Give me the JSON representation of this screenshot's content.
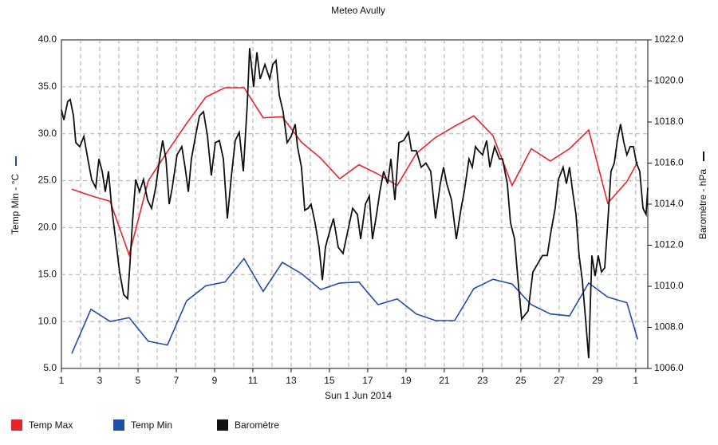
{
  "chart_data": {
    "type": "line",
    "title": "Meteo  Avully",
    "xlabel": "Sun 1 Jun 2014",
    "ylabel": "Temp Min - °C",
    "y2label": "Baromètre - hPa",
    "grid": true,
    "legend": "bottom",
    "xlim": [
      0,
      30.63
    ],
    "xticks": [
      {
        "value": 0,
        "label": "1"
      },
      {
        "value": 2,
        "label": "3"
      },
      {
        "value": 4,
        "label": "5"
      },
      {
        "value": 6,
        "label": "7"
      },
      {
        "value": 8,
        "label": "9"
      },
      {
        "value": 10,
        "label": "11"
      },
      {
        "value": 12,
        "label": "13"
      },
      {
        "value": 14,
        "label": "15"
      },
      {
        "value": 16,
        "label": "17"
      },
      {
        "value": 18,
        "label": "19"
      },
      {
        "value": 20,
        "label": "21"
      },
      {
        "value": 22,
        "label": "23"
      },
      {
        "value": 24,
        "label": "25"
      },
      {
        "value": 26,
        "label": "27"
      },
      {
        "value": 28,
        "label": "29"
      },
      {
        "value": 30,
        "label": "1"
      }
    ],
    "ylim": [
      5,
      40
    ],
    "yticks": [
      {
        "value": 5,
        "label": "5.0"
      },
      {
        "value": 10,
        "label": "10.0"
      },
      {
        "value": 15,
        "label": "15.0"
      },
      {
        "value": 20,
        "label": "20.0"
      },
      {
        "value": 25,
        "label": "25.0"
      },
      {
        "value": 30,
        "label": "30.0"
      },
      {
        "value": 35,
        "label": "35.0"
      },
      {
        "value": 40,
        "label": "40.0"
      }
    ],
    "y2lim": [
      1006,
      1022
    ],
    "y2ticks": [
      {
        "value": 1006,
        "label": "1006.0"
      },
      {
        "value": 1008,
        "label": "1008.0"
      },
      {
        "value": 1010,
        "label": "1010.0"
      },
      {
        "value": 1012,
        "label": "1012.0"
      },
      {
        "value": 1014,
        "label": "1014.0"
      },
      {
        "value": 1016,
        "label": "1016.0"
      },
      {
        "value": 1018,
        "label": "1018.0"
      },
      {
        "value": 1020,
        "label": "1020.0"
      },
      {
        "value": 1022,
        "label": "1022.0"
      }
    ],
    "series": [
      {
        "name": "Temp Max",
        "color": "#e8232b",
        "x": [
          0.54,
          1.54,
          2.54,
          3.54,
          4.54,
          5.54,
          6.54,
          7.54,
          8.54,
          9.54,
          10.54,
          11.54,
          12.54,
          13.54,
          14.54,
          15.54,
          16.54,
          17.54,
          18.54,
          19.54,
          20.54,
          21.54,
          22.54,
          23.54,
          24.54,
          25.54,
          26.54,
          27.54,
          28.54,
          29.54,
          30.1
        ],
        "values": [
          24.1,
          23.4,
          22.8,
          17.1,
          25.0,
          28.1,
          31.1,
          33.9,
          34.9,
          34.9,
          31.7,
          31.8,
          29.1,
          27.4,
          25.2,
          26.7,
          25.7,
          24.5,
          27.9,
          29.6,
          30.8,
          31.9,
          29.8,
          24.5,
          28.4,
          27.1,
          28.4,
          30.4,
          22.6,
          24.9,
          27.0
        ]
      },
      {
        "name": "Temp Min",
        "color": "#1f4ea8",
        "x": [
          0.54,
          1.54,
          2.54,
          3.54,
          4.54,
          5.54,
          6.54,
          7.54,
          8.54,
          9.54,
          10.54,
          11.54,
          12.54,
          13.54,
          14.54,
          15.54,
          16.54,
          17.54,
          18.54,
          19.54,
          20.54,
          21.54,
          22.54,
          23.54,
          24.54,
          25.54,
          26.54,
          27.54,
          28.54,
          29.54,
          30.1
        ],
        "values": [
          6.6,
          11.3,
          10.0,
          10.4,
          7.9,
          7.5,
          12.2,
          13.8,
          14.2,
          16.7,
          13.2,
          16.3,
          15.1,
          13.4,
          14.1,
          14.2,
          11.8,
          12.4,
          10.8,
          10.1,
          10.1,
          13.5,
          14.5,
          14.0,
          11.8,
          10.8,
          10.6,
          14.1,
          12.6,
          12.0,
          8.1
        ]
      },
      {
        "name": "Baromètre",
        "color": "#111111",
        "axis": "y2",
        "x": [
          0,
          0.13,
          0.33,
          0.46,
          0.63,
          0.75,
          0.96,
          1.17,
          1.38,
          1.58,
          1.79,
          1.96,
          2.13,
          2.29,
          2.46,
          2.63,
          2.83,
          3.04,
          3.25,
          3.46,
          3.58,
          3.71,
          3.88,
          4.08,
          4.29,
          4.5,
          4.71,
          4.92,
          5.13,
          5.29,
          5.46,
          5.63,
          5.79,
          6.04,
          6.29,
          6.46,
          6.63,
          6.79,
          7.0,
          7.21,
          7.42,
          7.63,
          7.83,
          8.04,
          8.25,
          8.46,
          8.67,
          8.88,
          9.08,
          9.29,
          9.5,
          9.71,
          9.83,
          10.04,
          10.21,
          10.38,
          10.63,
          10.88,
          11.04,
          11.21,
          11.38,
          11.58,
          11.79,
          12.0,
          12.21,
          12.33,
          12.54,
          12.71,
          12.88,
          13.04,
          13.25,
          13.46,
          13.63,
          13.79,
          13.96,
          14.21,
          14.46,
          14.71,
          14.96,
          15.21,
          15.46,
          15.63,
          15.88,
          16.08,
          16.25,
          16.46,
          16.63,
          16.83,
          17.04,
          17.21,
          17.42,
          17.63,
          17.88,
          18.13,
          18.29,
          18.54,
          18.79,
          19.04,
          19.29,
          19.54,
          19.79,
          19.96,
          20.13,
          20.38,
          20.63,
          20.88,
          21.04,
          21.29,
          21.46,
          21.63,
          21.79,
          22.0,
          22.21,
          22.38,
          22.63,
          22.88,
          23.04,
          23.29,
          23.46,
          23.67,
          23.88,
          24.04,
          24.21,
          24.38,
          24.63,
          24.88,
          25.13,
          25.38,
          25.54,
          25.79,
          25.96,
          26.21,
          26.38,
          26.54,
          26.71,
          26.88,
          27.04,
          27.21,
          27.38,
          27.54,
          27.71,
          27.88,
          28.04,
          28.21,
          28.38,
          28.54,
          28.71,
          28.88,
          29.04,
          29.21,
          29.38,
          29.54,
          29.71,
          29.88,
          30.04,
          30.21,
          30.38,
          30.54,
          30.63
        ],
        "values": [
          1018.6,
          1018.1,
          1019.0,
          1019.1,
          1018.3,
          1017.0,
          1016.8,
          1017.3,
          1016.2,
          1015.2,
          1014.8,
          1016.2,
          1015.6,
          1014.6,
          1015.6,
          1013.8,
          1012.3,
          1010.7,
          1009.6,
          1009.4,
          1011.1,
          1013.1,
          1015.2,
          1014.6,
          1015.2,
          1014.2,
          1013.8,
          1014.8,
          1016.2,
          1017.1,
          1016.2,
          1014.0,
          1014.8,
          1016.4,
          1016.8,
          1015.8,
          1014.6,
          1016.2,
          1017.3,
          1018.3,
          1018.5,
          1017.3,
          1015.4,
          1017.0,
          1017.1,
          1016.2,
          1013.3,
          1015.4,
          1017.1,
          1017.5,
          1015.6,
          1018.9,
          1021.6,
          1019.7,
          1021.4,
          1020.1,
          1020.8,
          1020.1,
          1020.8,
          1021.0,
          1019.3,
          1018.5,
          1017.0,
          1017.3,
          1017.9,
          1016.8,
          1015.8,
          1013.7,
          1013.8,
          1014.0,
          1013.1,
          1011.9,
          1010.3,
          1011.9,
          1012.5,
          1013.3,
          1011.9,
          1011.6,
          1012.7,
          1013.8,
          1013.5,
          1012.3,
          1014.0,
          1014.4,
          1012.3,
          1013.5,
          1014.6,
          1015.6,
          1015.0,
          1016.2,
          1014.2,
          1017.0,
          1017.1,
          1017.5,
          1016.6,
          1016.6,
          1015.8,
          1016.0,
          1015.6,
          1013.3,
          1015.0,
          1015.8,
          1015.0,
          1014.2,
          1012.3,
          1013.8,
          1014.6,
          1016.2,
          1015.8,
          1016.8,
          1016.6,
          1016.4,
          1017.1,
          1015.8,
          1016.8,
          1016.2,
          1016.2,
          1015.0,
          1013.1,
          1012.3,
          1010.0,
          1008.4,
          1008.6,
          1008.8,
          1010.7,
          1011.1,
          1011.5,
          1011.5,
          1012.5,
          1013.8,
          1015.2,
          1015.8,
          1015.0,
          1015.8,
          1014.6,
          1013.5,
          1011.5,
          1010.3,
          1008.4,
          1006.5,
          1011.5,
          1010.5,
          1011.5,
          1010.7,
          1010.9,
          1013.1,
          1015.6,
          1016.0,
          1017.1,
          1017.9,
          1017.0,
          1016.4,
          1016.8,
          1016.8,
          1016.0,
          1015.6,
          1013.8,
          1013.5,
          1014.8
        ]
      }
    ]
  }
}
